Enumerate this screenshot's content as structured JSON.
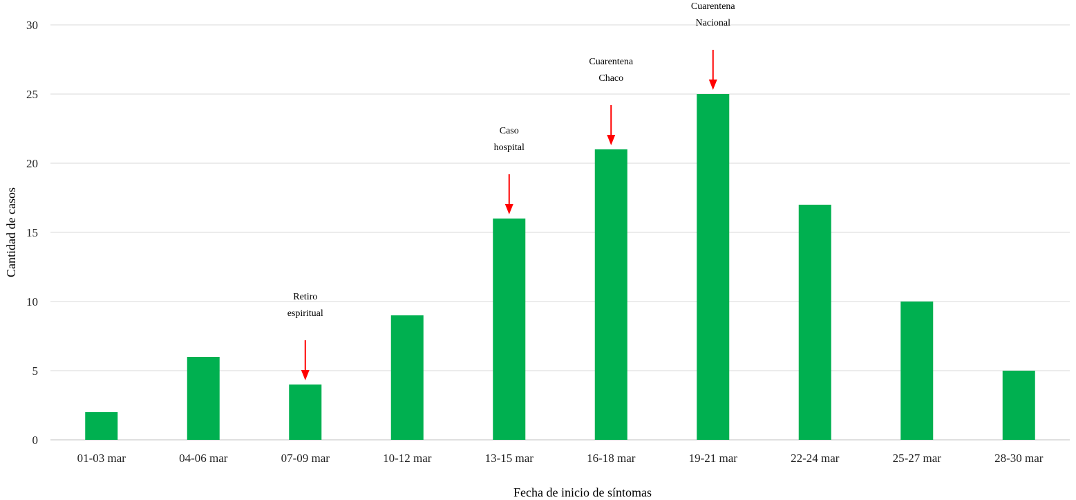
{
  "chart_data": {
    "type": "bar",
    "categories": [
      "01-03 mar",
      "04-06 mar",
      "07-09 mar",
      "10-12 mar",
      "13-15 mar",
      "16-18 mar",
      "19-21 mar",
      "22-24 mar",
      "25-27 mar",
      "28-30 mar"
    ],
    "values": [
      2,
      6,
      4,
      9,
      16,
      21,
      25,
      17,
      10,
      5
    ],
    "xlabel": "Fecha de inicio de síntomas",
    "ylabel": "Cantidad de casos",
    "ylim": [
      0,
      30
    ],
    "yticks": [
      0,
      5,
      10,
      15,
      20,
      25,
      30
    ],
    "grid": true,
    "legend": "none",
    "bar_color": "#00b050",
    "annotations": [
      {
        "category": "07-09 mar",
        "lines": [
          "Retiro",
          "espiritual"
        ],
        "arrow_color": "#ff0000"
      },
      {
        "category": "13-15 mar",
        "lines": [
          "Caso",
          "hospital"
        ],
        "arrow_color": "#ff0000"
      },
      {
        "category": "16-18 mar",
        "lines": [
          "Cuarentena",
          "Chaco"
        ],
        "arrow_color": "#ff0000"
      },
      {
        "category": "19-21 mar",
        "lines": [
          "Cuarentena",
          "Nacional"
        ],
        "arrow_color": "#ff0000"
      }
    ]
  }
}
